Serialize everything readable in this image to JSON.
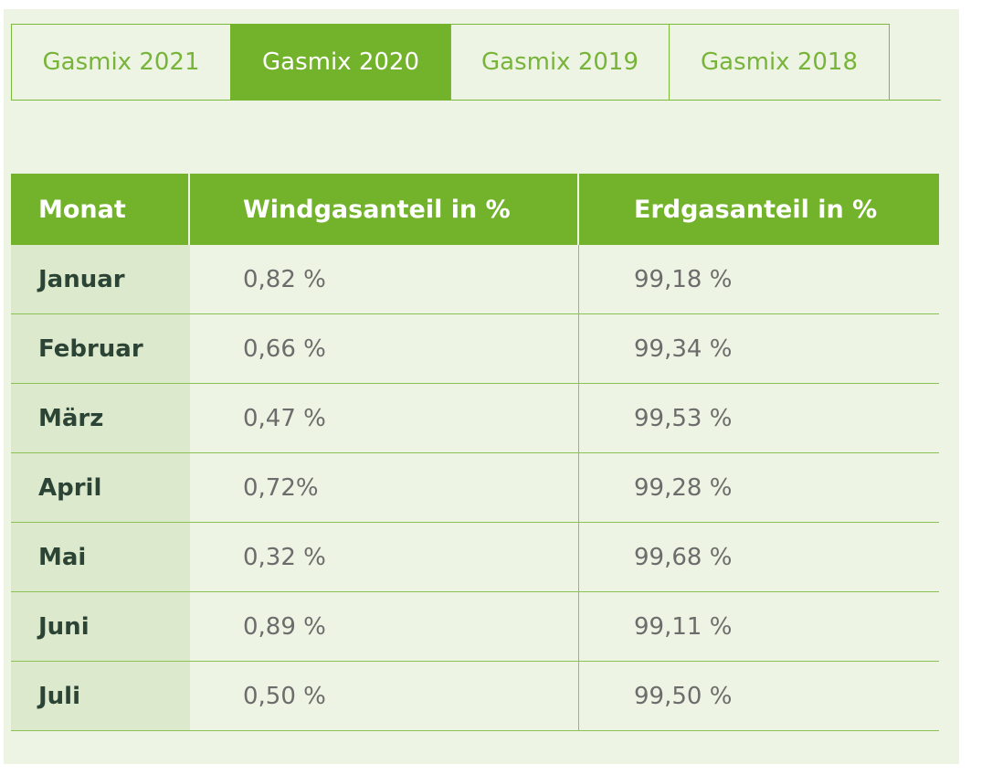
{
  "tabs": [
    {
      "label": "Gasmix 2021",
      "active": false
    },
    {
      "label": "Gasmix 2020",
      "active": true
    },
    {
      "label": "Gasmix 2019",
      "active": false
    },
    {
      "label": "Gasmix 2018",
      "active": false
    }
  ],
  "table": {
    "headers": [
      "Monat",
      "Windgasanteil in %",
      "Erdgasanteil in %"
    ],
    "rows": [
      {
        "month": "Januar",
        "wind": "0,82 %",
        "erdgas": "99,18 %"
      },
      {
        "month": "Februar",
        "wind": "0,66 %",
        "erdgas": "99,34 %"
      },
      {
        "month": "März",
        "wind": "0,47 %",
        "erdgas": "99,53 %"
      },
      {
        "month": "April",
        "wind": "0,72%",
        "erdgas": "99,28 %"
      },
      {
        "month": "Mai",
        "wind": "0,32 %",
        "erdgas": "99,68 %"
      },
      {
        "month": "Juni",
        "wind": "0,89 %",
        "erdgas": "99,11 %"
      },
      {
        "month": "Juli",
        "wind": "0,50 %",
        "erdgas": "99,50 %"
      }
    ]
  },
  "colors": {
    "accent": "#72b32b",
    "background": "#eef4e3",
    "month_cell": "#dde9cc",
    "month_text": "#2b4436"
  }
}
